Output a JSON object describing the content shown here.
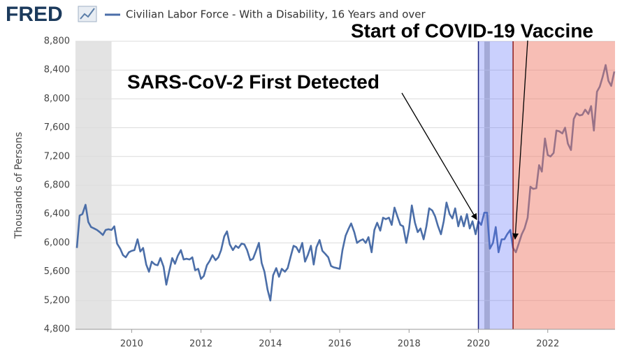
{
  "chart_data": {
    "type": "line",
    "source": "FRED",
    "y_label": "Thousands of Persons",
    "xlim": [
      2008.38,
      2023.94
    ],
    "ylim": [
      4800,
      8800
    ],
    "xticks": [
      2010,
      2012,
      2014,
      2016,
      2018,
      2020,
      2022
    ],
    "yticks": [
      {
        "value": 4800,
        "label": "4,800"
      },
      {
        "value": 5200,
        "label": "5,200"
      },
      {
        "value": 5600,
        "label": "5,600"
      },
      {
        "value": 6000,
        "label": "6,000"
      },
      {
        "value": 6400,
        "label": "6,400"
      },
      {
        "value": 6800,
        "label": "6,800"
      },
      {
        "value": 7200,
        "label": "7,200"
      },
      {
        "value": 7600,
        "label": "7,600"
      },
      {
        "value": 8000,
        "label": "8,000"
      },
      {
        "value": 8400,
        "label": "8,400"
      },
      {
        "value": 8800,
        "label": "8,800"
      }
    ],
    "grid": true,
    "shading": [
      {
        "start": 2008.38,
        "end": 2009.42,
        "color": "#e3e3e3"
      },
      {
        "start": 2020.17,
        "end": 2020.33,
        "color": "#c8c8c8"
      }
    ],
    "annotations": [
      {
        "text": "SARS-CoV-2 First Detected",
        "x": 2020.0,
        "end": 2021.0,
        "line_color": "#1a237e",
        "fill": "rgba(90,110,250,0.32)"
      },
      {
        "text": "Start of COVID-19 Vaccine",
        "x": 2021.0,
        "end": 2023.94,
        "line_color": "#8b1a1a",
        "fill": "rgba(238,120,100,0.48)"
      }
    ],
    "x": [
      2008.42,
      2008.5,
      2008.58,
      2008.67,
      2008.75,
      2008.83,
      2008.92,
      2009,
      2009.08,
      2009.17,
      2009.25,
      2009.33,
      2009.42,
      2009.5,
      2009.58,
      2009.67,
      2009.75,
      2009.83,
      2009.92,
      2010,
      2010.08,
      2010.17,
      2010.25,
      2010.33,
      2010.42,
      2010.5,
      2010.58,
      2010.67,
      2010.75,
      2010.83,
      2010.92,
      2011,
      2011.08,
      2011.17,
      2011.25,
      2011.33,
      2011.42,
      2011.5,
      2011.58,
      2011.67,
      2011.75,
      2011.83,
      2011.92,
      2012,
      2012.08,
      2012.17,
      2012.25,
      2012.33,
      2012.42,
      2012.5,
      2012.58,
      2012.67,
      2012.75,
      2012.83,
      2012.92,
      2013,
      2013.08,
      2013.17,
      2013.25,
      2013.33,
      2013.42,
      2013.5,
      2013.58,
      2013.67,
      2013.75,
      2013.83,
      2013.92,
      2014,
      2014.08,
      2014.17,
      2014.25,
      2014.33,
      2014.42,
      2014.5,
      2014.58,
      2014.67,
      2014.75,
      2014.83,
      2014.92,
      2015,
      2015.08,
      2015.17,
      2015.25,
      2015.33,
      2015.42,
      2015.5,
      2015.58,
      2015.67,
      2015.75,
      2015.83,
      2015.92,
      2016,
      2016.08,
      2016.17,
      2016.25,
      2016.33,
      2016.42,
      2016.5,
      2016.58,
      2016.67,
      2016.75,
      2016.83,
      2016.92,
      2017,
      2017.08,
      2017.17,
      2017.25,
      2017.33,
      2017.42,
      2017.5,
      2017.58,
      2017.67,
      2017.75,
      2017.83,
      2017.92,
      2018,
      2018.08,
      2018.17,
      2018.25,
      2018.33,
      2018.42,
      2018.5,
      2018.58,
      2018.67,
      2018.75,
      2018.83,
      2018.92,
      2019,
      2019.08,
      2019.17,
      2019.25,
      2019.33,
      2019.42,
      2019.5,
      2019.58,
      2019.67,
      2019.75,
      2019.83,
      2019.92,
      2020,
      2020.08,
      2020.17,
      2020.25,
      2020.33,
      2020.42,
      2020.5,
      2020.58,
      2020.67,
      2020.75,
      2020.83,
      2020.92,
      2021,
      2021.08,
      2021.17,
      2021.25,
      2021.33,
      2021.42,
      2021.5,
      2021.58,
      2021.67,
      2021.75,
      2021.83,
      2021.92,
      2022,
      2022.08,
      2022.17,
      2022.25,
      2022.33,
      2022.42,
      2022.5,
      2022.58,
      2022.67,
      2022.75,
      2022.83,
      2022.92,
      2023,
      2023.08,
      2023.17,
      2023.25,
      2023.33,
      2023.42,
      2023.5,
      2023.58,
      2023.67,
      2023.75,
      2023.83,
      2023.92
    ],
    "series": [
      {
        "name": "Civilian Labor Force - With a Disability, 16 Years and over",
        "color": "#4b6ea8",
        "values": [
          5930,
          6380,
          6400,
          6530,
          6290,
          6220,
          6200,
          6180,
          6150,
          6110,
          6180,
          6190,
          6180,
          6230,
          5990,
          5920,
          5830,
          5800,
          5870,
          5890,
          5900,
          6050,
          5880,
          5930,
          5700,
          5600,
          5740,
          5700,
          5690,
          5790,
          5670,
          5420,
          5600,
          5790,
          5710,
          5820,
          5900,
          5770,
          5780,
          5770,
          5800,
          5620,
          5640,
          5500,
          5540,
          5690,
          5750,
          5830,
          5760,
          5800,
          5900,
          6090,
          6160,
          5980,
          5900,
          5960,
          5930,
          5990,
          5980,
          5900,
          5760,
          5780,
          5880,
          6000,
          5720,
          5600,
          5350,
          5200,
          5550,
          5650,
          5530,
          5640,
          5600,
          5650,
          5800,
          5960,
          5940,
          5870,
          6000,
          5740,
          5830,
          5960,
          5700,
          5940,
          6040,
          5890,
          5850,
          5800,
          5680,
          5660,
          5650,
          5640,
          5900,
          6100,
          6190,
          6270,
          6150,
          6000,
          6030,
          6050,
          6000,
          6080,
          5870,
          6180,
          6280,
          6170,
          6350,
          6330,
          6350,
          6250,
          6490,
          6360,
          6250,
          6230,
          6000,
          6200,
          6520,
          6280,
          6150,
          6200,
          6050,
          6230,
          6480,
          6450,
          6370,
          6240,
          6120,
          6300,
          6560,
          6400,
          6340,
          6480,
          6230,
          6370,
          6230,
          6400,
          6200,
          6300,
          6120,
          6300,
          6250,
          6420,
          6420,
          5920,
          6000,
          6220,
          5870,
          6050,
          6050,
          6120,
          6180,
          5930,
          5870,
          6000,
          6120,
          6200,
          6350,
          6780,
          6750,
          6760,
          7080,
          6990,
          7450,
          7220,
          7200,
          7250,
          7560,
          7550,
          7520,
          7600,
          7380,
          7290,
          7720,
          7800,
          7770,
          7780,
          7850,
          7790,
          7900,
          7560,
          8100,
          8170,
          8300,
          8470,
          8250,
          8180,
          8380
        ]
      }
    ]
  }
}
